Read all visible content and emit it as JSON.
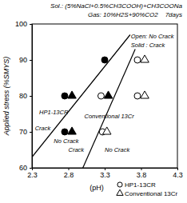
{
  "chart_data": {
    "type": "scatter",
    "title": "Sol.: (5%NaCl+0.5%CH3COOH)+CH3COONa",
    "subtitle": "Gas: 10%H2S+90%CO2    7days",
    "x_label": "(pH)",
    "y_label": "Applied stress (%SMYS)",
    "xlim": [
      2.3,
      4.3
    ],
    "xticks": [
      2.3,
      2.8,
      3.3,
      3.8,
      4.3
    ],
    "ylim": [
      60,
      100
    ],
    "yticks": [
      60,
      70,
      80,
      90,
      100
    ],
    "legend": "bottom right",
    "series": [
      {
        "name": "HP1-13CR",
        "marker": "circle",
        "color": "#000000",
        "x": [
          2.75,
          2.75,
          3.3,
          3.25,
          3.27,
          3.75,
          3.75
        ],
        "values": [
          80,
          70,
          90,
          80,
          70,
          80,
          90
        ],
        "crack": [
          true,
          true,
          true,
          false,
          false,
          false,
          false
        ]
      },
      {
        "name": "Conventional 13Cr",
        "marker": "triangle",
        "color": "#000000",
        "x": [
          2.85,
          2.85,
          3.35,
          3.33,
          3.85,
          3.85
        ],
        "values": [
          80,
          70,
          80,
          70,
          80,
          90
        ],
        "crack": [
          true,
          true,
          true,
          false,
          false,
          false
        ]
      }
    ],
    "boundaries": [
      {
        "x": [
          2.3,
          3.65
        ],
        "values": [
          63,
          97
        ],
        "color": "#000000"
      },
      {
        "x": [
          3.0,
          3.72
        ],
        "values": [
          60,
          93
        ],
        "color": "#000000"
      }
    ],
    "annotations": [
      {
        "text": "Open: No Crack",
        "x": 3.66,
        "y": 96
      },
      {
        "text": "Solid : Crack",
        "x": 3.66,
        "y": 93.5
      },
      {
        "text": "HP1-13CR",
        "x": 2.4,
        "y": 75
      },
      {
        "text": "Conventional 13Cr",
        "x": 3.02,
        "y": 73.8
      },
      {
        "text": "Crack",
        "x": 2.34,
        "y": 70.5
      },
      {
        "text": "No Crack",
        "x": 2.6,
        "y": 67
      },
      {
        "text": "Crack",
        "x": 2.8,
        "y": 64.5
      },
      {
        "text": "No Crack",
        "x": 3.3,
        "y": 64.5
      }
    ]
  }
}
